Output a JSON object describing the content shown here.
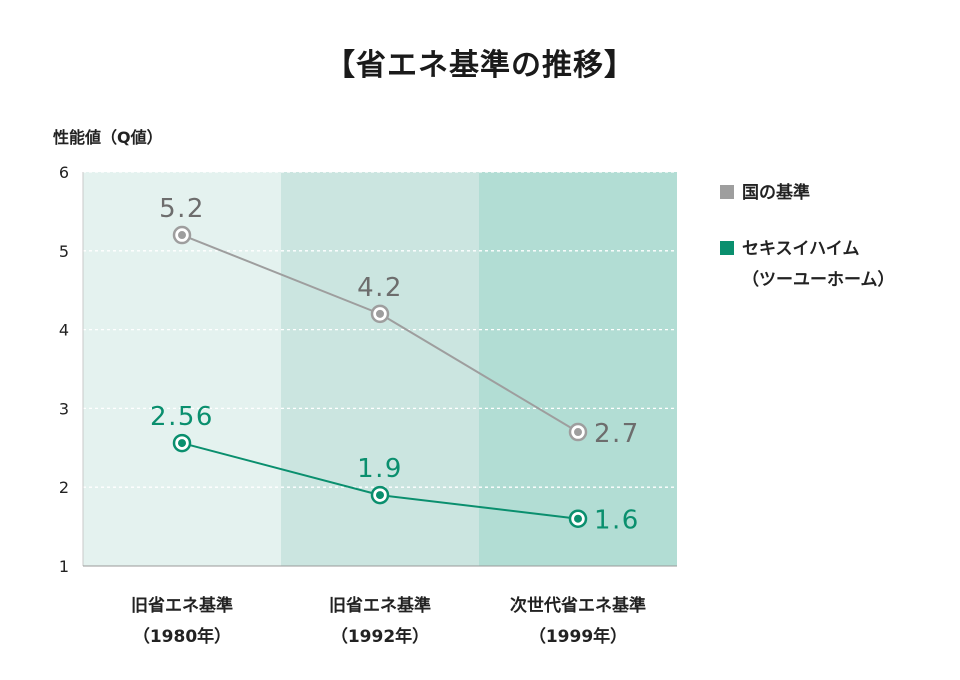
{
  "title": "【省エネ基準の推移】",
  "chart_data": {
    "type": "line",
    "ylabel": "性能値（Q値）",
    "ylim": [
      1,
      6
    ],
    "yticks": [
      1,
      2,
      3,
      4,
      5,
      6
    ],
    "grid": true,
    "categories": [
      {
        "line1": "旧省エネ基準",
        "line2": "（1980年）"
      },
      {
        "line1": "旧省エネ基準",
        "line2": "（1992年）"
      },
      {
        "line1": "次世代省エネ基準",
        "line2": "（1999年）"
      }
    ],
    "band_colors": [
      "#e4f2ef",
      "#cbe5e0",
      "#b2ddd4"
    ],
    "series": [
      {
        "name": "国の基準",
        "color": "#9e9e9e",
        "label_color": "#6d6d6d",
        "values": [
          5.2,
          4.2,
          2.7
        ],
        "labels": [
          "5.2",
          "4.2",
          "2.7"
        ]
      },
      {
        "name": "セキスイハイム",
        "name_sub": "（ツーユーホーム）",
        "color": "#0a8f6e",
        "label_color": "#0a8f6e",
        "values": [
          2.56,
          1.9,
          1.6
        ],
        "labels": [
          "2.56",
          "1.9",
          "1.6"
        ]
      }
    ],
    "legend_position": "right"
  }
}
